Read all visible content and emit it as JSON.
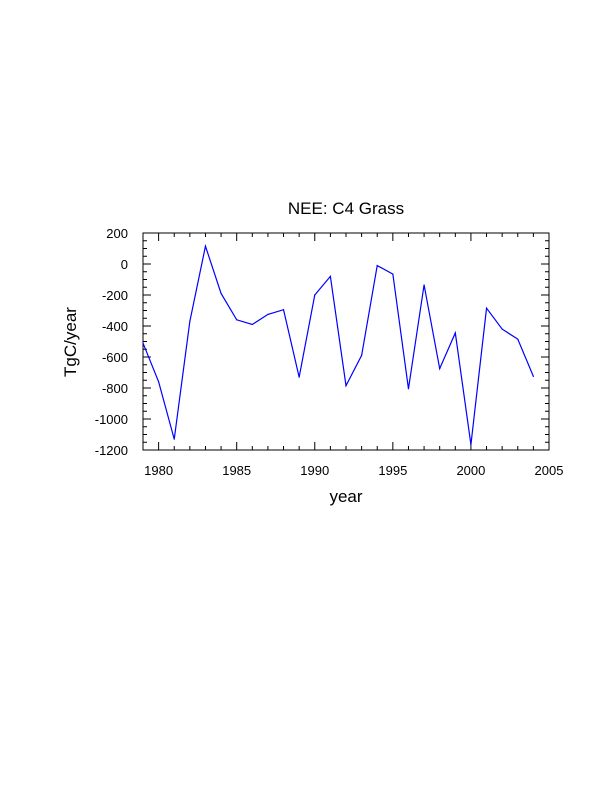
{
  "chart_data": {
    "type": "line",
    "title": "NEE: C4 Grass",
    "xlabel": "year",
    "ylabel": "TgC/year",
    "xlim": [
      1979,
      2005
    ],
    "ylim": [
      -1200,
      200
    ],
    "xticks": [
      1980,
      1985,
      1990,
      1995,
      2000,
      2005
    ],
    "yticks": [
      200,
      0,
      -200,
      -400,
      -600,
      -800,
      -1000,
      -1200
    ],
    "xminor_step": 1,
    "yminor_step": 50,
    "series": [
      {
        "name": "NEE",
        "color": "#0000ff",
        "x": [
          1979,
          1980,
          1981,
          1982,
          1983,
          1984,
          1985,
          1986,
          1987,
          1988,
          1989,
          1990,
          1991,
          1992,
          1993,
          1994,
          1995,
          1996,
          1997,
          1998,
          1999,
          2000,
          2001,
          2002,
          2003,
          2004
        ],
        "values": [
          -510,
          -760,
          -1130,
          -370,
          115,
          -190,
          -360,
          -390,
          -325,
          -295,
          -730,
          -200,
          -80,
          -785,
          -590,
          -10,
          -65,
          -805,
          -135,
          -675,
          -445,
          -1165,
          -285,
          -420,
          -485,
          -725
        ]
      }
    ]
  }
}
